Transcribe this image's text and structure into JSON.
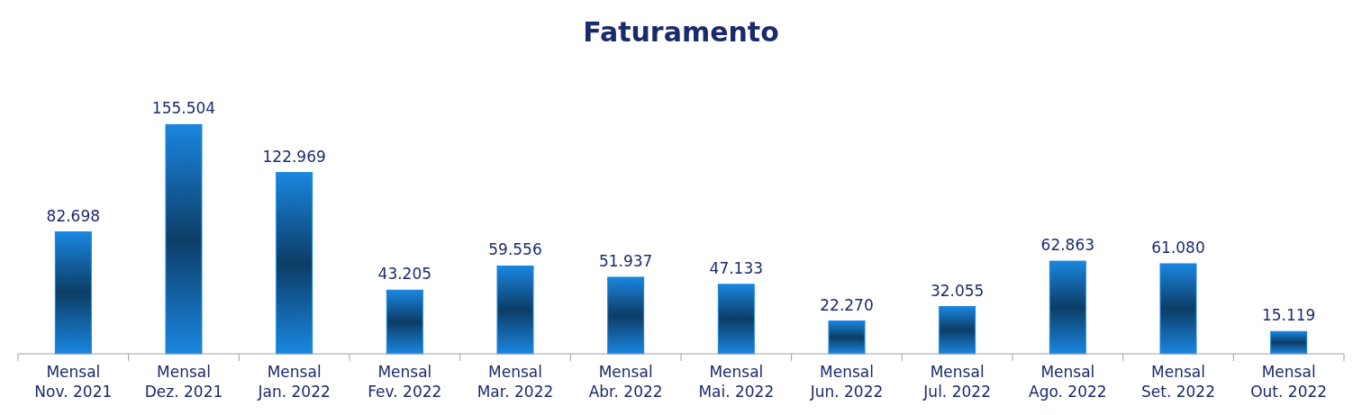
{
  "chart_data": {
    "type": "bar",
    "title": "Faturamento",
    "categories": [
      "Mensal\nNov. 2021",
      "Mensal\nDez. 2021",
      "Mensal\nJan. 2022",
      "Mensal\nFev. 2022",
      "Mensal\nMar. 2022",
      "Mensal\nAbr. 2022",
      "Mensal\nMai. 2022",
      "Mensal\nJun. 2022",
      "Mensal\nJul. 2022",
      "Mensal\nAgo. 2022",
      "Mensal\nSet. 2022",
      "Mensal\nOut. 2022"
    ],
    "values": [
      82698,
      155504,
      122969,
      43205,
      59556,
      51937,
      47133,
      22270,
      32055,
      62863,
      61080,
      15119
    ],
    "value_labels": [
      "82.698",
      "155.504",
      "122.969",
      "43.205",
      "59.556",
      "51.937",
      "47.133",
      "22.270",
      "32.055",
      "62.863",
      "61.080",
      "15.119"
    ],
    "color": "#1a86e0"
  }
}
